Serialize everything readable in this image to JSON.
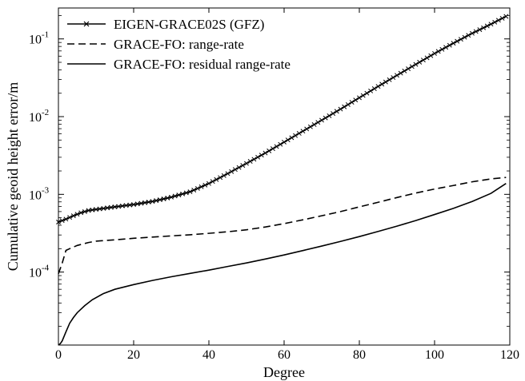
{
  "chart_data": {
    "type": "line",
    "title": "",
    "xlabel": "Degree",
    "ylabel": "Cumulative geoid height error/m",
    "xlim": [
      0,
      120
    ],
    "ylim": [
      1.15e-05,
      0.25
    ],
    "yscale": "log",
    "grid": false,
    "legend_position": "top-left",
    "x_ticks": [
      0,
      20,
      40,
      60,
      80,
      100,
      120
    ],
    "x_tick_labels": [
      "0",
      "20",
      "40",
      "60",
      "80",
      "100",
      "120"
    ],
    "y_ticks": [
      {
        "value": 0.0001,
        "base": "10",
        "exponent": "-4"
      },
      {
        "value": 0.001,
        "base": "10",
        "exponent": "-3"
      },
      {
        "value": 0.01,
        "base": "10",
        "exponent": "-2"
      },
      {
        "value": 0.1,
        "base": "10",
        "exponent": "-1"
      }
    ],
    "series": [
      {
        "name": "EIGEN-GRACE02S (GFZ)",
        "style": "solid-x",
        "x": [
          0,
          2,
          4,
          6,
          8,
          10,
          15,
          20,
          25,
          30,
          35,
          40,
          45,
          50,
          55,
          60,
          65,
          70,
          75,
          80,
          85,
          90,
          95,
          100,
          105,
          110,
          115,
          119
        ],
        "y": [
          0.00044,
          0.00048,
          0.00053,
          0.00058,
          0.00062,
          0.00064,
          0.00069,
          0.00074,
          0.00081,
          0.00092,
          0.00108,
          0.00138,
          0.00185,
          0.0025,
          0.0034,
          0.0047,
          0.0065,
          0.009,
          0.0125,
          0.0175,
          0.0245,
          0.034,
          0.047,
          0.065,
          0.088,
          0.118,
          0.155,
          0.195
        ]
      },
      {
        "name": "GRACE-FO: range-rate",
        "style": "dashed",
        "x": [
          0,
          1,
          2,
          3,
          5,
          8,
          10,
          15,
          20,
          25,
          30,
          35,
          40,
          45,
          50,
          55,
          60,
          65,
          70,
          75,
          80,
          85,
          90,
          95,
          100,
          105,
          110,
          115,
          119
        ],
        "y": [
          9.5e-05,
          0.00013,
          0.00019,
          0.0002,
          0.00022,
          0.00024,
          0.00025,
          0.00026,
          0.000272,
          0.000282,
          0.000292,
          0.000302,
          0.000315,
          0.00033,
          0.00035,
          0.00038,
          0.00042,
          0.00047,
          0.00053,
          0.0006,
          0.00069,
          0.00079,
          0.00091,
          0.00104,
          0.00117,
          0.0013,
          0.00145,
          0.00158,
          0.00165
        ]
      },
      {
        "name": "GRACE-FO: residual range-rate",
        "style": "solid",
        "x": [
          0,
          0.5,
          1,
          2,
          3,
          4,
          5,
          7,
          9,
          12,
          15,
          20,
          25,
          30,
          35,
          40,
          45,
          50,
          55,
          60,
          65,
          70,
          75,
          80,
          85,
          90,
          95,
          100,
          105,
          110,
          115,
          119
        ],
        "y": [
          1.15e-05,
          1.2e-05,
          1.3e-05,
          1.7e-05,
          2.2e-05,
          2.6e-05,
          3e-05,
          3.7e-05,
          4.4e-05,
          5.3e-05,
          6e-05,
          6.9e-05,
          7.8e-05,
          8.7e-05,
          9.6e-05,
          0.000106,
          0.000118,
          0.000131,
          0.000147,
          0.000166,
          0.000189,
          0.000216,
          0.000248,
          0.000286,
          0.000333,
          0.00039,
          0.00046,
          0.00055,
          0.00066,
          0.00081,
          0.00103,
          0.00138
        ]
      }
    ]
  }
}
